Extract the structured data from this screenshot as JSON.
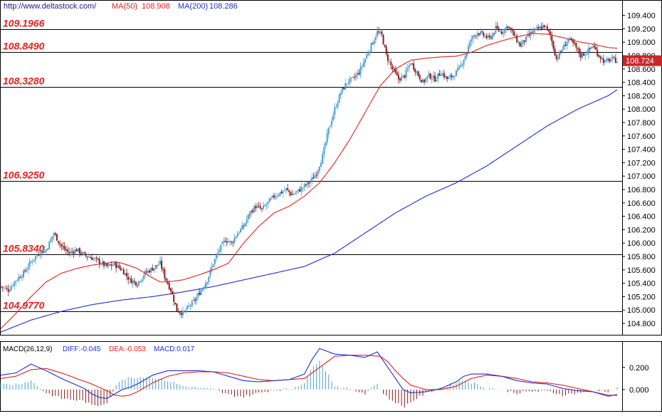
{
  "header": {
    "site": "http://www.deltastock.com/",
    "ma50_label": "MA(50)",
    "ma50_value": "108.908",
    "ma200_label": "MA(200)",
    "ma200_value": "108.286"
  },
  "macd_header": {
    "name": "MACD(26,12,9)",
    "diff": "DIFF:-0.045",
    "dea": "DEA:-0.053",
    "macd": "MACD:0.017"
  },
  "current_price": "108.724",
  "colors": {
    "up": "#4a9fd4",
    "down": "#8b1a1a",
    "ma50": "#e8201e",
    "ma200": "#1c2fd6",
    "level_text": "#e8201e",
    "price_tag": "#c8262c",
    "macd_diff": "#1c2fd6",
    "macd_dea": "#e8201e"
  },
  "levels": [
    {
      "value": 109.1966,
      "label": "109.1966"
    },
    {
      "value": 108.849,
      "label": "108.8490"
    },
    {
      "value": 108.328,
      "label": "108.3280"
    },
    {
      "value": 106.925,
      "label": "106.9250"
    },
    {
      "value": 105.834,
      "label": "105.8340"
    },
    {
      "value": 104.977,
      "label": "104.9770"
    }
  ],
  "chart_data": {
    "type": "line",
    "price_axis": {
      "ticks": [
        "104.800",
        "105.000",
        "105.200",
        "105.400",
        "105.600",
        "105.800",
        "106.000",
        "106.200",
        "106.400",
        "106.600",
        "106.800",
        "107.000",
        "107.200",
        "107.400",
        "107.600",
        "107.800",
        "108.000",
        "108.200",
        "108.400",
        "108.600",
        "108.800",
        "109.000",
        "109.200",
        "109.400"
      ],
      "ylim": [
        104.63,
        109.63
      ]
    },
    "macd_axis": {
      "ticks": [
        "0.200",
        "0.000"
      ],
      "ylim": [
        -0.2,
        0.43
      ]
    },
    "price_keypoints": [
      [
        0,
        105.35
      ],
      [
        5,
        105.3
      ],
      [
        10,
        105.45
      ],
      [
        15,
        105.55
      ],
      [
        20,
        105.72
      ],
      [
        25,
        105.85
      ],
      [
        30,
        105.9
      ],
      [
        35,
        106.15
      ],
      [
        40,
        105.95
      ],
      [
        45,
        105.85
      ],
      [
        50,
        105.9
      ],
      [
        55,
        105.82
      ],
      [
        60,
        105.78
      ],
      [
        65,
        105.72
      ],
      [
        70,
        105.65
      ],
      [
        75,
        105.68
      ],
      [
        80,
        105.6
      ],
      [
        85,
        105.45
      ],
      [
        90,
        105.4
      ],
      [
        95,
        105.55
      ],
      [
        100,
        105.62
      ],
      [
        105,
        105.7
      ],
      [
        108,
        105.5
      ],
      [
        112,
        105.3
      ],
      [
        116,
        105.0
      ],
      [
        120,
        104.95
      ],
      [
        124,
        105.05
      ],
      [
        128,
        105.15
      ],
      [
        132,
        105.3
      ],
      [
        136,
        105.45
      ],
      [
        140,
        105.7
      ],
      [
        144,
        105.9
      ],
      [
        148,
        106.05
      ],
      [
        152,
        106.0
      ],
      [
        156,
        106.15
      ],
      [
        160,
        106.25
      ],
      [
        164,
        106.45
      ],
      [
        168,
        106.55
      ],
      [
        172,
        106.5
      ],
      [
        176,
        106.6
      ],
      [
        180,
        106.7
      ],
      [
        184,
        106.75
      ],
      [
        188,
        106.8
      ],
      [
        192,
        106.72
      ],
      [
        196,
        106.78
      ],
      [
        200,
        106.85
      ],
      [
        204,
        106.92
      ],
      [
        208,
        107.05
      ],
      [
        212,
        107.3
      ],
      [
        216,
        107.7
      ],
      [
        220,
        108.0
      ],
      [
        224,
        108.25
      ],
      [
        228,
        108.4
      ],
      [
        232,
        108.45
      ],
      [
        236,
        108.55
      ],
      [
        240,
        108.75
      ],
      [
        244,
        108.95
      ],
      [
        248,
        109.15
      ],
      [
        251,
        109.1
      ],
      [
        254,
        108.8
      ],
      [
        258,
        108.6
      ],
      [
        262,
        108.45
      ],
      [
        266,
        108.5
      ],
      [
        270,
        108.7
      ],
      [
        274,
        108.55
      ],
      [
        278,
        108.4
      ],
      [
        282,
        108.5
      ],
      [
        286,
        108.45
      ],
      [
        290,
        108.55
      ],
      [
        294,
        108.45
      ],
      [
        298,
        108.5
      ],
      [
        302,
        108.6
      ],
      [
        306,
        108.8
      ],
      [
        310,
        109.05
      ],
      [
        314,
        109.15
      ],
      [
        318,
        109.1
      ],
      [
        322,
        109.05
      ],
      [
        326,
        109.2
      ],
      [
        330,
        109.15
      ],
      [
        334,
        109.25
      ],
      [
        338,
        109.1
      ],
      [
        342,
        108.95
      ],
      [
        346,
        109.05
      ],
      [
        350,
        109.15
      ],
      [
        354,
        109.2
      ],
      [
        358,
        109.25
      ],
      [
        362,
        109.1
      ],
      [
        366,
        108.75
      ],
      [
        370,
        108.9
      ],
      [
        374,
        109.05
      ],
      [
        378,
        108.95
      ],
      [
        382,
        108.8
      ],
      [
        386,
        108.85
      ],
      [
        390,
        108.95
      ],
      [
        394,
        108.8
      ],
      [
        398,
        108.7
      ],
      [
        402,
        108.75
      ],
      [
        406,
        108.72
      ]
    ],
    "ma50_keypoints": [
      [
        0,
        104.72
      ],
      [
        10,
        104.95
      ],
      [
        20,
        105.2
      ],
      [
        30,
        105.42
      ],
      [
        40,
        105.55
      ],
      [
        50,
        105.62
      ],
      [
        60,
        105.67
      ],
      [
        70,
        105.7
      ],
      [
        75,
        105.72
      ],
      [
        80,
        105.7
      ],
      [
        90,
        105.62
      ],
      [
        100,
        105.48
      ],
      [
        105,
        105.42
      ],
      [
        110,
        105.42
      ],
      [
        120,
        105.45
      ],
      [
        130,
        105.52
      ],
      [
        140,
        105.6
      ],
      [
        150,
        105.7
      ],
      [
        155,
        105.85
      ],
      [
        160,
        106.0
      ],
      [
        170,
        106.25
      ],
      [
        180,
        106.45
      ],
      [
        190,
        106.55
      ],
      [
        200,
        106.7
      ],
      [
        210,
        106.9
      ],
      [
        220,
        107.2
      ],
      [
        230,
        107.55
      ],
      [
        240,
        107.95
      ],
      [
        250,
        108.35
      ],
      [
        260,
        108.6
      ],
      [
        270,
        108.73
      ],
      [
        280,
        108.76
      ],
      [
        290,
        108.78
      ],
      [
        300,
        108.79
      ],
      [
        310,
        108.85
      ],
      [
        320,
        108.95
      ],
      [
        330,
        109.02
      ],
      [
        340,
        109.08
      ],
      [
        350,
        109.13
      ],
      [
        360,
        109.12
      ],
      [
        370,
        109.07
      ],
      [
        380,
        109.01
      ],
      [
        390,
        108.97
      ],
      [
        400,
        108.92
      ],
      [
        406,
        108.91
      ]
    ],
    "ma200_keypoints": [
      [
        0,
        104.67
      ],
      [
        20,
        104.85
      ],
      [
        40,
        104.98
      ],
      [
        60,
        105.08
      ],
      [
        80,
        105.15
      ],
      [
        100,
        105.2
      ],
      [
        120,
        105.27
      ],
      [
        140,
        105.35
      ],
      [
        160,
        105.45
      ],
      [
        180,
        105.55
      ],
      [
        200,
        105.65
      ],
      [
        220,
        105.85
      ],
      [
        240,
        106.15
      ],
      [
        260,
        106.45
      ],
      [
        280,
        106.7
      ],
      [
        300,
        106.9
      ],
      [
        320,
        107.15
      ],
      [
        340,
        107.45
      ],
      [
        360,
        107.75
      ],
      [
        380,
        108.0
      ],
      [
        400,
        108.2
      ],
      [
        406,
        108.29
      ]
    ],
    "macd_diff_keypoints": [
      [
        0,
        0.13
      ],
      [
        10,
        0.15
      ],
      [
        20,
        0.23
      ],
      [
        30,
        0.17
      ],
      [
        40,
        0.1
      ],
      [
        50,
        0.04
      ],
      [
        55,
        0.01
      ],
      [
        60,
        -0.04
      ],
      [
        65,
        -0.07
      ],
      [
        70,
        -0.08
      ],
      [
        75,
        -0.04
      ],
      [
        80,
        0.0
      ],
      [
        85,
        0.02
      ],
      [
        90,
        0.05
      ],
      [
        100,
        0.13
      ],
      [
        110,
        0.17
      ],
      [
        120,
        0.17
      ],
      [
        130,
        0.17
      ],
      [
        140,
        0.16
      ],
      [
        150,
        0.12
      ],
      [
        160,
        0.08
      ],
      [
        170,
        0.07
      ],
      [
        180,
        0.08
      ],
      [
        190,
        0.09
      ],
      [
        200,
        0.14
      ],
      [
        205,
        0.27
      ],
      [
        210,
        0.37
      ],
      [
        220,
        0.32
      ],
      [
        230,
        0.31
      ],
      [
        240,
        0.29
      ],
      [
        248,
        0.34
      ],
      [
        255,
        0.2
      ],
      [
        260,
        0.1
      ],
      [
        265,
        0.0
      ],
      [
        270,
        -0.03
      ],
      [
        280,
        -0.02
      ],
      [
        290,
        0.01
      ],
      [
        300,
        0.07
      ],
      [
        305,
        0.12
      ],
      [
        310,
        0.14
      ],
      [
        320,
        0.14
      ],
      [
        330,
        0.12
      ],
      [
        340,
        0.08
      ],
      [
        350,
        0.06
      ],
      [
        360,
        0.05
      ],
      [
        370,
        0.01
      ],
      [
        380,
        -0.01
      ],
      [
        390,
        -0.02
      ],
      [
        400,
        -0.06
      ],
      [
        406,
        -0.045
      ]
    ],
    "macd_dea_keypoints": [
      [
        0,
        0.1
      ],
      [
        10,
        0.12
      ],
      [
        20,
        0.18
      ],
      [
        30,
        0.19
      ],
      [
        40,
        0.15
      ],
      [
        50,
        0.1
      ],
      [
        60,
        0.05
      ],
      [
        70,
        -0.01
      ],
      [
        75,
        -0.05
      ],
      [
        80,
        -0.06
      ],
      [
        85,
        -0.05
      ],
      [
        90,
        -0.02
      ],
      [
        100,
        0.06
      ],
      [
        110,
        0.12
      ],
      [
        120,
        0.15
      ],
      [
        130,
        0.16
      ],
      [
        140,
        0.16
      ],
      [
        150,
        0.15
      ],
      [
        160,
        0.12
      ],
      [
        170,
        0.09
      ],
      [
        180,
        0.08
      ],
      [
        190,
        0.09
      ],
      [
        200,
        0.1
      ],
      [
        210,
        0.2
      ],
      [
        220,
        0.3
      ],
      [
        230,
        0.31
      ],
      [
        240,
        0.31
      ],
      [
        250,
        0.3
      ],
      [
        255,
        0.25
      ],
      [
        260,
        0.17
      ],
      [
        265,
        0.1
      ],
      [
        270,
        0.04
      ],
      [
        280,
        0.0
      ],
      [
        290,
        0.0
      ],
      [
        300,
        0.03
      ],
      [
        310,
        0.1
      ],
      [
        320,
        0.13
      ],
      [
        330,
        0.12
      ],
      [
        340,
        0.1
      ],
      [
        350,
        0.07
      ],
      [
        360,
        0.06
      ],
      [
        370,
        0.04
      ],
      [
        380,
        0.01
      ],
      [
        390,
        -0.02
      ],
      [
        400,
        -0.05
      ],
      [
        406,
        -0.053
      ]
    ],
    "bar_count": 407
  }
}
